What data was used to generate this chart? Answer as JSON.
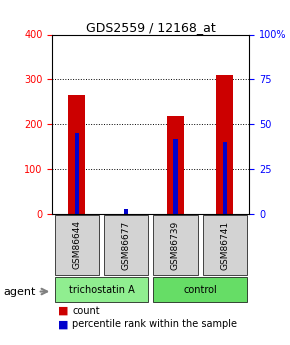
{
  "title": "GDS2559 / 12168_at",
  "samples": [
    "GSM86644",
    "GSM86677",
    "GSM86739",
    "GSM86741"
  ],
  "counts": [
    265,
    0,
    218,
    310
  ],
  "percentiles": [
    45,
    3,
    42,
    40
  ],
  "groups": [
    "trichostatin A",
    "trichostatin A",
    "control",
    "control"
  ],
  "group_colors": {
    "trichostatin A": "#90EE90",
    "control": "#00CC00"
  },
  "ylim_left": [
    0,
    400
  ],
  "ylim_right": [
    0,
    100
  ],
  "yticks_left": [
    0,
    100,
    200,
    300,
    400
  ],
  "yticks_right": [
    0,
    25,
    50,
    75,
    100
  ],
  "bar_width": 0.35,
  "count_color": "#CC0000",
  "percentile_color": "#0000CC",
  "bg_color": "#F0F0F0",
  "legend_count_label": "count",
  "legend_pct_label": "percentile rank within the sample",
  "agent_label": "agent",
  "group_label_trichostatin": "trichostatin A",
  "group_label_control": "control"
}
